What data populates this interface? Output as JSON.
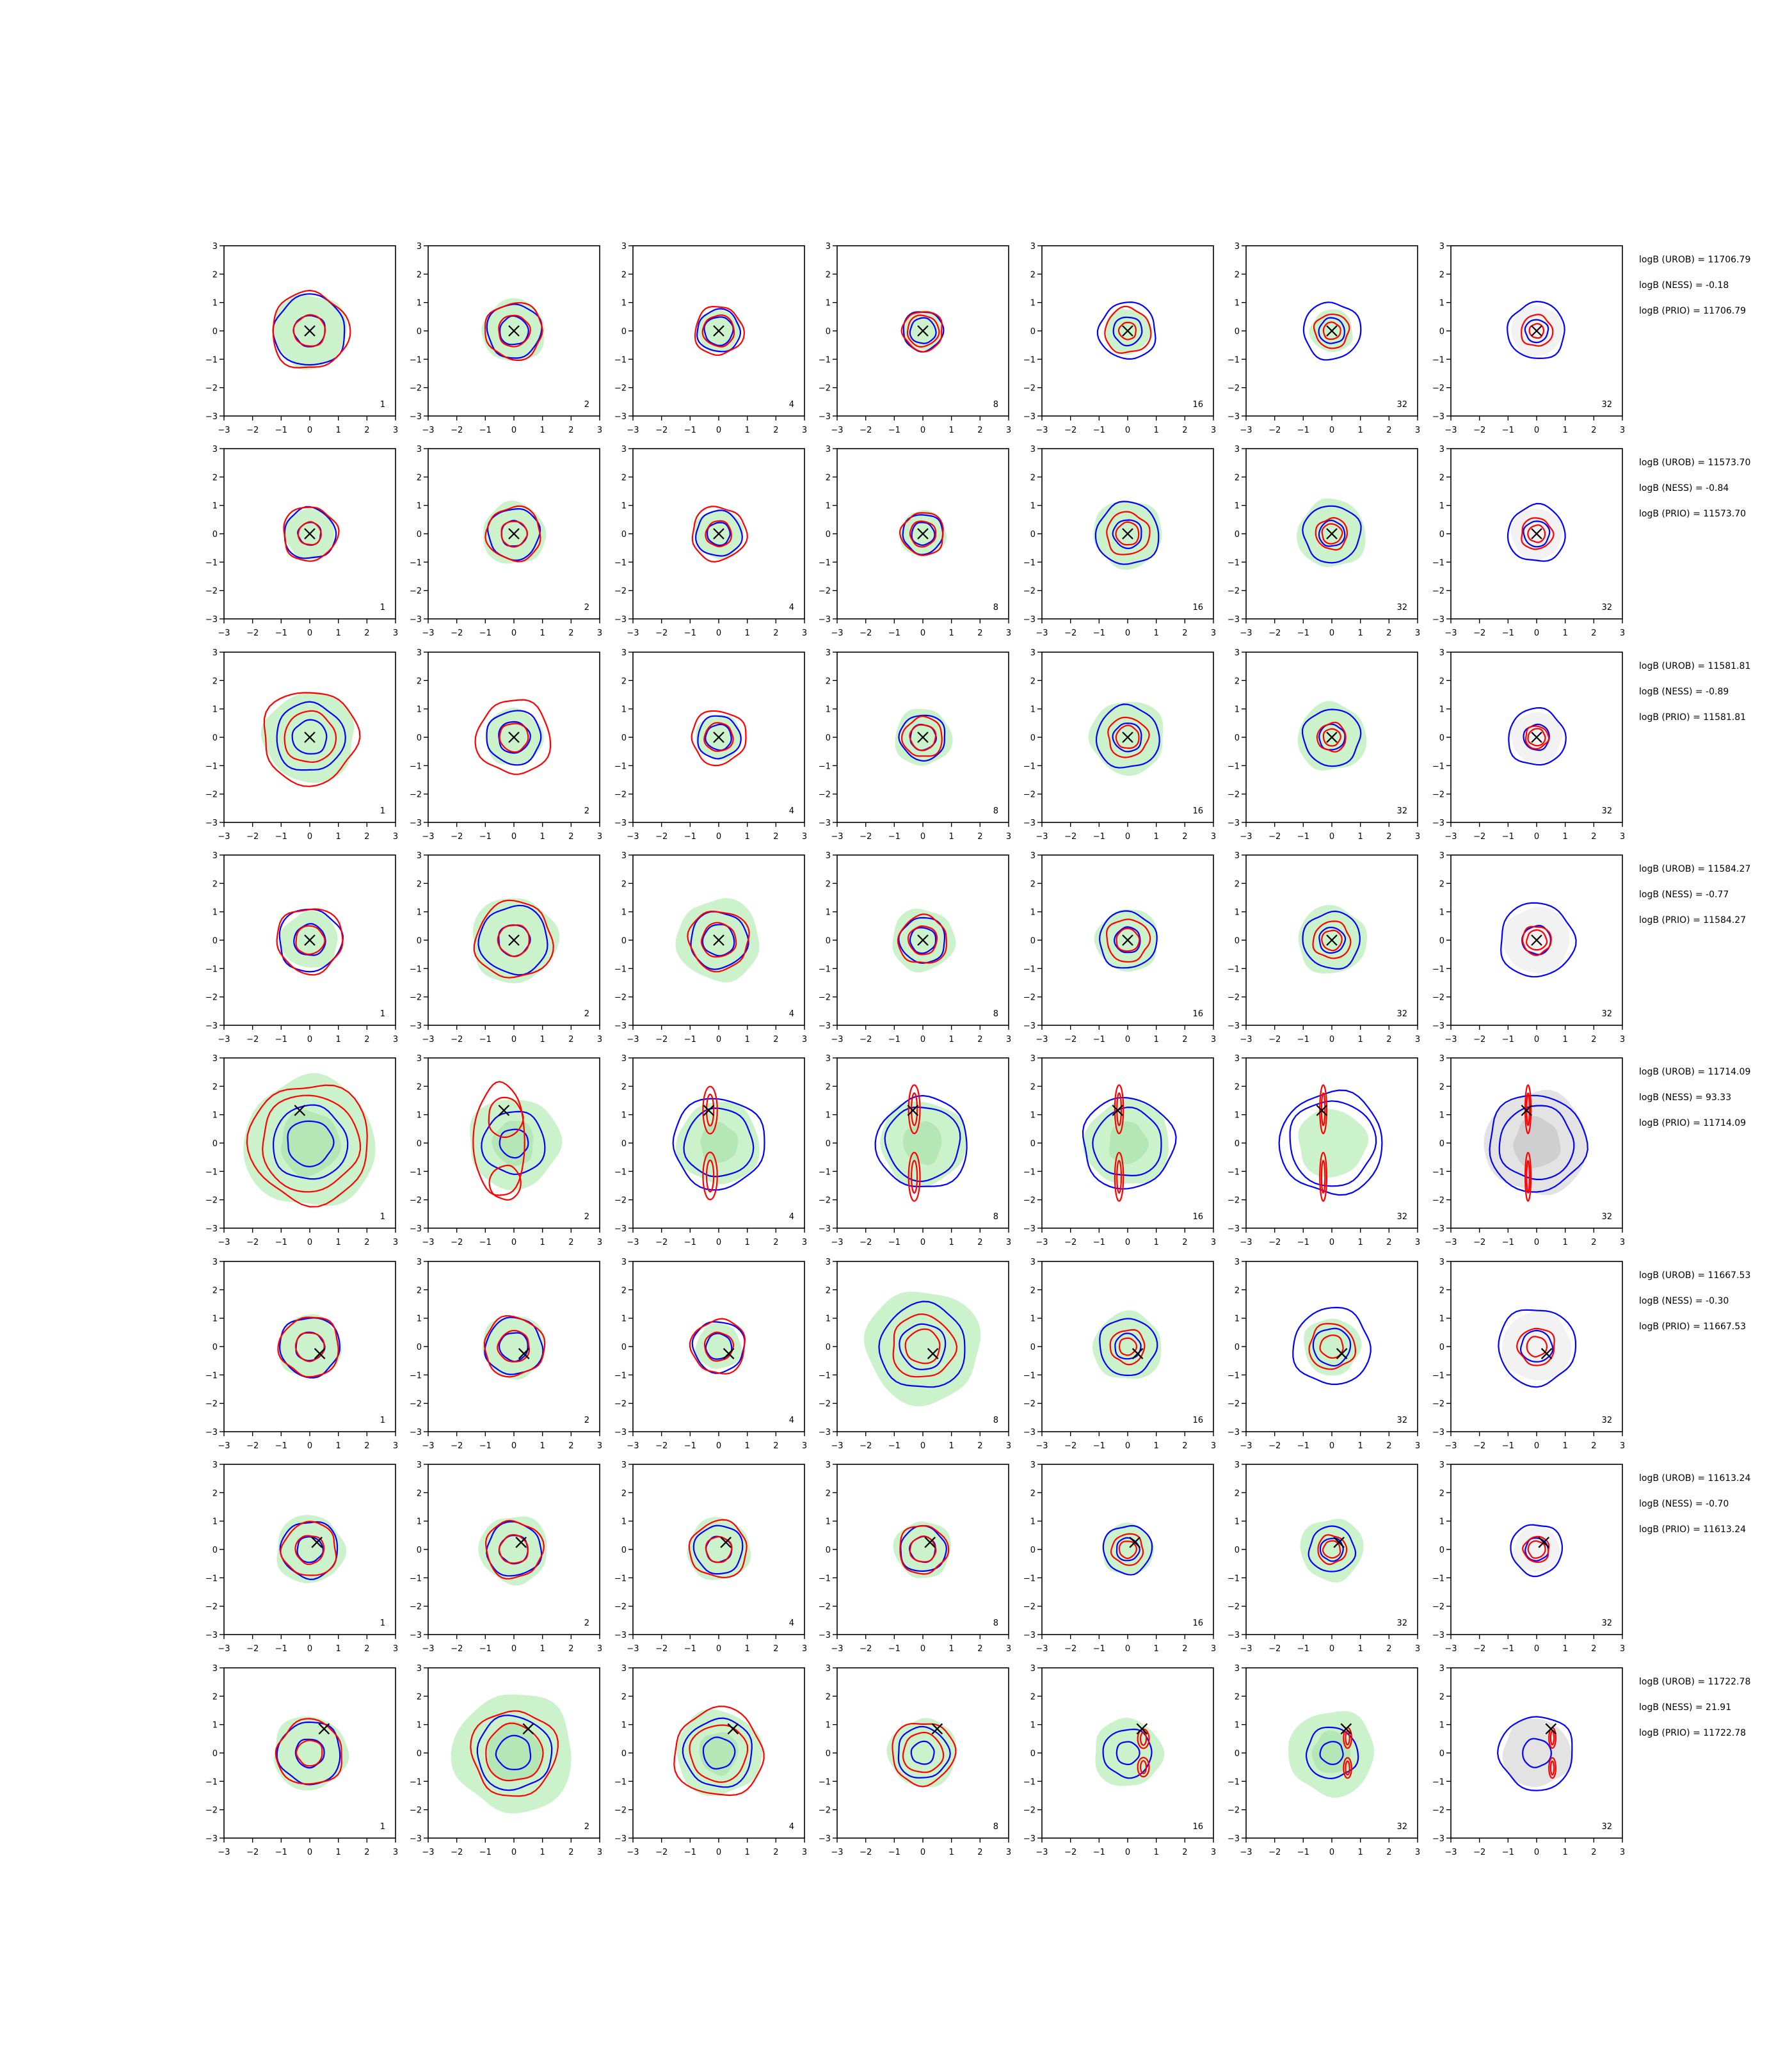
{
  "figure": {
    "colors": {
      "fill_green": "#ccf2cc",
      "fill_green_dark": "#b5e6b5",
      "fill_grey": "#e3e3e3",
      "fill_grey_dark": "#cfcfcf",
      "contour_blue": "#0000ff",
      "contour_red": "#ff0000",
      "marker": "#000000"
    },
    "marker_glyph": "×"
  },
  "chart_data": {
    "type": "contour-grid",
    "rows": 8,
    "cols": 7,
    "xlim": [
      -3,
      3
    ],
    "ylim": [
      -3,
      3
    ],
    "xticks": [
      "−3",
      "−2",
      "−1",
      "0",
      "1",
      "2",
      "3"
    ],
    "yticks": [
      "3",
      "2",
      "1",
      "0",
      "−1",
      "−2",
      "−3"
    ],
    "column_labels": [
      "1",
      "2",
      "4",
      "8",
      "16",
      "32",
      "32"
    ],
    "panel_rows": [
      {
        "stats": [
          "logB (UROB) = 11706.79",
          "logB (NESS) = -0.18",
          "logB (PRIO) = 11706.79"
        ],
        "truth": [
          0,
          0
        ],
        "mode": "normal",
        "green": [
          1.3,
          1.1,
          0.75,
          0.7,
          0.8,
          0.75,
          0.0
        ],
        "blue": [
          [
            1.25,
            0.55
          ],
          [
            0.95,
            0.5
          ],
          [
            0.75,
            0.5
          ],
          [
            0.7,
            0.45
          ],
          [
            1.0,
            0.5
          ],
          [
            1.0,
            0.45
          ],
          [
            1.0,
            0.4
          ]
        ],
        "red": [
          [
            1.35,
            0.55
          ],
          [
            1.0,
            0.55
          ],
          [
            0.85,
            0.55
          ],
          [
            0.7,
            0.55
          ],
          [
            0.8,
            0.3
          ],
          [
            0.6,
            0.3
          ],
          [
            0.55,
            0.25
          ]
        ]
      },
      {
        "stats": [
          "logB (UROB) = 11573.70",
          "logB (NESS) = -0.84",
          "logB (PRIO) = 11573.70"
        ],
        "truth": [
          0,
          0
        ],
        "mode": "normal",
        "green": [
          0.9,
          1.1,
          0.85,
          0.8,
          1.2,
          1.2,
          0.0
        ],
        "blue": [
          [
            0.9,
            0.4
          ],
          [
            0.9,
            0.45
          ],
          [
            0.8,
            0.4
          ],
          [
            0.7,
            0.4
          ],
          [
            1.1,
            0.5
          ],
          [
            1.0,
            0.45
          ],
          [
            1.0,
            0.45
          ]
        ],
        "red": [
          [
            0.95,
            0.4
          ],
          [
            0.95,
            0.45
          ],
          [
            0.95,
            0.45
          ],
          [
            0.75,
            0.45
          ],
          [
            0.75,
            0.4
          ],
          [
            0.55,
            0.35
          ],
          [
            0.55,
            0.3
          ]
        ]
      },
      {
        "stats": [
          "logB (UROB) = 11581.81",
          "logB (NESS) = -0.89",
          "logB (PRIO) = 11581.81"
        ],
        "truth": [
          0,
          0
        ],
        "mode": "normal",
        "green": [
          1.6,
          1.0,
          0.8,
          1.0,
          1.3,
          1.2,
          0.0
        ],
        "blue": [
          [
            1.2,
            0.6
          ],
          [
            0.95,
            0.55
          ],
          [
            0.75,
            0.45
          ],
          [
            0.8,
            0.45
          ],
          [
            1.1,
            0.5
          ],
          [
            1.0,
            0.45
          ],
          [
            1.0,
            0.45
          ]
        ],
        "red": [
          [
            1.65,
            0.9
          ],
          [
            1.3,
            0.5
          ],
          [
            0.95,
            0.5
          ],
          [
            0.7,
            0.45
          ],
          [
            0.7,
            0.4
          ],
          [
            0.5,
            0.3
          ],
          [
            0.4,
            0.3
          ]
        ]
      },
      {
        "stats": [
          "logB (UROB) = 11584.27",
          "logB (NESS) = -0.77",
          "logB (PRIO) = 11584.27"
        ],
        "truth": [
          0,
          0
        ],
        "mode": "normal",
        "green": [
          1.0,
          1.5,
          1.45,
          1.1,
          1.1,
          1.2,
          0.0
        ],
        "blue": [
          [
            1.1,
            0.55
          ],
          [
            1.2,
            0.55
          ],
          [
            1.0,
            0.55
          ],
          [
            0.8,
            0.45
          ],
          [
            1.0,
            0.45
          ],
          [
            1.0,
            0.45
          ],
          [
            1.3,
            0.5
          ]
        ],
        "red": [
          [
            1.15,
            0.5
          ],
          [
            1.35,
            0.55
          ],
          [
            1.05,
            0.6
          ],
          [
            0.85,
            0.5
          ],
          [
            0.75,
            0.4
          ],
          [
            0.65,
            0.35
          ],
          [
            0.5,
            0.35
          ]
        ]
      },
      {
        "stats": [
          "logB (UROB) = 11714.09",
          "logB (NESS) = 93.33",
          "logB (PRIO) = 11714.09"
        ],
        "truth": [
          -0.35,
          1.15
        ],
        "mode": "bimodal",
        "green": [
          2.3,
          1.6,
          1.45,
          1.5,
          1.5,
          1.2,
          1.8
        ],
        "blue": [
          [
            0.8,
            1.3
          ],
          [
            1.1,
            0.5
          ],
          [
            1.6,
            1.2
          ],
          [
            1.6,
            1.3
          ],
          [
            1.6,
            1.2
          ],
          [
            1.8,
            1.5
          ],
          [
            1.7,
            1.3
          ]
        ],
        "red": [
          [
            2.1,
            1.7
          ],
          [
            1.2,
            0.9
          ],
          [
            0.25,
            1.85
          ],
          [
            0.2,
            1.9
          ],
          [
            0.15,
            1.9
          ],
          [
            0.12,
            1.9
          ],
          [
            0.1,
            1.9
          ]
        ]
      },
      {
        "stats": [
          "logB (UROB) = 11667.53",
          "logB (NESS) = -0.30",
          "logB (PRIO) = 11667.53"
        ],
        "truth": [
          0.35,
          -0.25
        ],
        "mode": "normal",
        "green": [
          1.1,
          1.1,
          0.8,
          2.0,
          1.2,
          1.0,
          0.0
        ],
        "blue": [
          [
            1.05,
            0.5
          ],
          [
            1.0,
            0.5
          ],
          [
            0.9,
            0.45
          ],
          [
            1.5,
            0.8
          ],
          [
            1.0,
            0.45
          ],
          [
            1.35,
            0.65
          ],
          [
            1.35,
            0.55
          ]
        ],
        "red": [
          [
            1.05,
            0.5
          ],
          [
            1.05,
            0.55
          ],
          [
            0.95,
            0.5
          ],
          [
            1.1,
            0.6
          ],
          [
            0.6,
            0.3
          ],
          [
            0.8,
            0.4
          ],
          [
            0.65,
            0.35
          ]
        ]
      },
      {
        "stats": [
          "logB (UROB) = 11613.24",
          "logB (NESS) = -0.70",
          "logB (PRIO) = 11613.24"
        ],
        "truth": [
          0.25,
          0.25
        ],
        "mode": "normal",
        "green": [
          1.2,
          1.2,
          1.1,
          1.0,
          0.9,
          1.1,
          0.0
        ],
        "blue": [
          [
            1.0,
            0.45
          ],
          [
            0.95,
            0.5
          ],
          [
            0.85,
            0.45
          ],
          [
            0.8,
            0.45
          ],
          [
            0.85,
            0.4
          ],
          [
            0.8,
            0.4
          ],
          [
            0.9,
            0.4
          ]
        ],
        "red": [
          [
            0.95,
            0.5
          ],
          [
            1.0,
            0.5
          ],
          [
            1.0,
            0.45
          ],
          [
            0.85,
            0.45
          ],
          [
            0.55,
            0.3
          ],
          [
            0.5,
            0.3
          ],
          [
            0.45,
            0.3
          ]
        ]
      },
      {
        "stats": [
          "logB (UROB) = 11722.78",
          "logB (NESS) = 21.91",
          "logB (PRIO) = 11722.78"
        ],
        "truth": [
          0.5,
          0.85
        ],
        "mode": "bimodal",
        "green": [
          1.3,
          2.1,
          1.5,
          1.2,
          1.2,
          1.5,
          1.2
        ],
        "blue": [
          [
            1.1,
            0.5
          ],
          [
            1.3,
            0.6
          ],
          [
            1.2,
            0.55
          ],
          [
            0.9,
            0.4
          ],
          [
            0.85,
            0.4
          ],
          [
            0.9,
            0.4
          ],
          [
            1.3,
            0.5
          ]
        ],
        "red": [
          [
            1.15,
            0.45
          ],
          [
            1.5,
            1.0
          ],
          [
            1.55,
            1.0
          ],
          [
            1.1,
            0.7
          ],
          [
            0.2,
            0.75
          ],
          [
            0.14,
            0.8
          ],
          [
            0.12,
            0.8
          ]
        ]
      }
    ]
  }
}
